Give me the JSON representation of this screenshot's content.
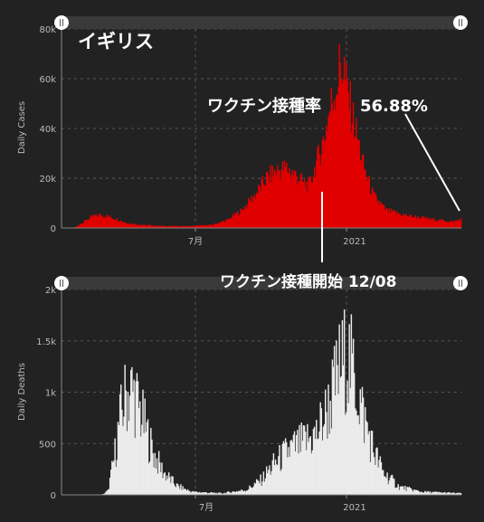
{
  "country": "イギリス",
  "annotations": {
    "vaccination_rate_label": "ワクチン接種率",
    "vaccination_rate_value": "56.88%",
    "vaccination_start": "ワクチン接種開始 12/08"
  },
  "colors": {
    "cases": "#e00000",
    "deaths": "#ebebeb",
    "background": "#222222",
    "grid": "#555555"
  },
  "icons": {
    "slider_handle": "pause-handle-icon"
  },
  "chart_data": [
    {
      "type": "bar",
      "ylabel": "Daily Cases",
      "xlabel": "",
      "x_ticks": [
        "7月",
        "2021"
      ],
      "y_ticks": [
        "0",
        "20k",
        "40k",
        "60k",
        "80k"
      ],
      "ylim": [
        0,
        80000
      ],
      "grid": true,
      "keyframes": [
        {
          "day": 0,
          "value": 0
        },
        {
          "day": 12,
          "value": 0
        },
        {
          "day": 20,
          "value": 2000
        },
        {
          "day": 30,
          "value": 4500
        },
        {
          "day": 38,
          "value": 5200
        },
        {
          "day": 45,
          "value": 4800
        },
        {
          "day": 55,
          "value": 3500
        },
        {
          "day": 65,
          "value": 2000
        },
        {
          "day": 80,
          "value": 1200
        },
        {
          "day": 100,
          "value": 800
        },
        {
          "day": 125,
          "value": 700
        },
        {
          "day": 150,
          "value": 1200
        },
        {
          "day": 165,
          "value": 3000
        },
        {
          "day": 180,
          "value": 7000
        },
        {
          "day": 195,
          "value": 14000
        },
        {
          "day": 205,
          "value": 20000
        },
        {
          "day": 215,
          "value": 23000
        },
        {
          "day": 225,
          "value": 24000
        },
        {
          "day": 235,
          "value": 21000
        },
        {
          "day": 242,
          "value": 18000
        },
        {
          "day": 248,
          "value": 17000
        },
        {
          "day": 255,
          "value": 26000
        },
        {
          "day": 262,
          "value": 35000
        },
        {
          "day": 270,
          "value": 50000
        },
        {
          "day": 277,
          "value": 60000
        },
        {
          "day": 281,
          "value": 65000
        },
        {
          "day": 286,
          "value": 55000
        },
        {
          "day": 293,
          "value": 42000
        },
        {
          "day": 302,
          "value": 25000
        },
        {
          "day": 312,
          "value": 13000
        },
        {
          "day": 325,
          "value": 7000
        },
        {
          "day": 345,
          "value": 5000
        },
        {
          "day": 370,
          "value": 3500
        },
        {
          "day": 392,
          "value": 2500
        },
        {
          "day": 400,
          "value": 3500
        }
      ]
    },
    {
      "type": "bar",
      "ylabel": "Daily Deaths",
      "xlabel": "",
      "x_ticks": [
        "7月",
        "2021"
      ],
      "y_ticks": [
        "0",
        "500",
        "1k",
        "1.5k",
        "2k"
      ],
      "ylim": [
        0,
        2000
      ],
      "grid": true,
      "keyframes": [
        {
          "day": 0,
          "value": 0
        },
        {
          "day": 40,
          "value": 0
        },
        {
          "day": 46,
          "value": 40
        },
        {
          "day": 52,
          "value": 350
        },
        {
          "day": 58,
          "value": 750
        },
        {
          "day": 64,
          "value": 1000
        },
        {
          "day": 70,
          "value": 1050
        },
        {
          "day": 76,
          "value": 900
        },
        {
          "day": 84,
          "value": 650
        },
        {
          "day": 92,
          "value": 400
        },
        {
          "day": 102,
          "value": 220
        },
        {
          "day": 115,
          "value": 90
        },
        {
          "day": 130,
          "value": 30
        },
        {
          "day": 160,
          "value": 15
        },
        {
          "day": 185,
          "value": 50
        },
        {
          "day": 200,
          "value": 150
        },
        {
          "day": 212,
          "value": 300
        },
        {
          "day": 228,
          "value": 450
        },
        {
          "day": 242,
          "value": 520
        },
        {
          "day": 255,
          "value": 600
        },
        {
          "day": 268,
          "value": 900
        },
        {
          "day": 278,
          "value": 1250
        },
        {
          "day": 286,
          "value": 1400
        },
        {
          "day": 294,
          "value": 1150
        },
        {
          "day": 302,
          "value": 800
        },
        {
          "day": 312,
          "value": 450
        },
        {
          "day": 322,
          "value": 220
        },
        {
          "day": 338,
          "value": 80
        },
        {
          "day": 360,
          "value": 30
        },
        {
          "day": 400,
          "value": 15
        }
      ]
    }
  ]
}
